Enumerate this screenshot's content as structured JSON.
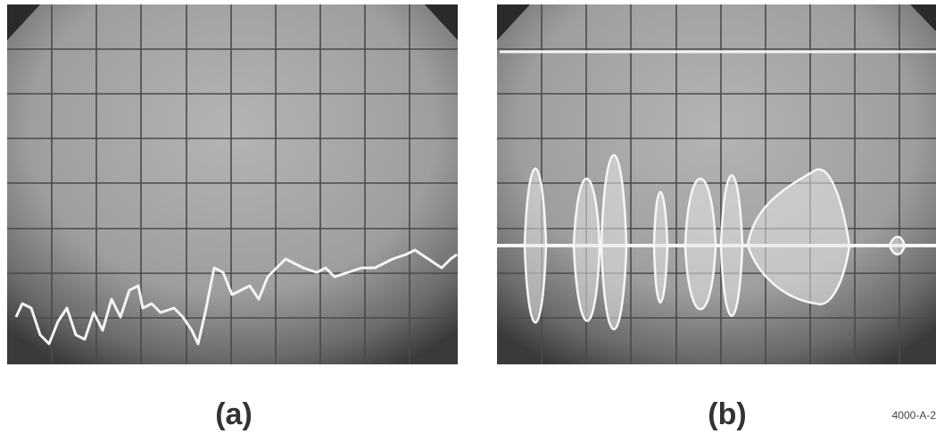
{
  "panels": [
    {
      "label": "(a)"
    },
    {
      "label": "(b)"
    }
  ],
  "figure_id": "4000-A-2"
}
